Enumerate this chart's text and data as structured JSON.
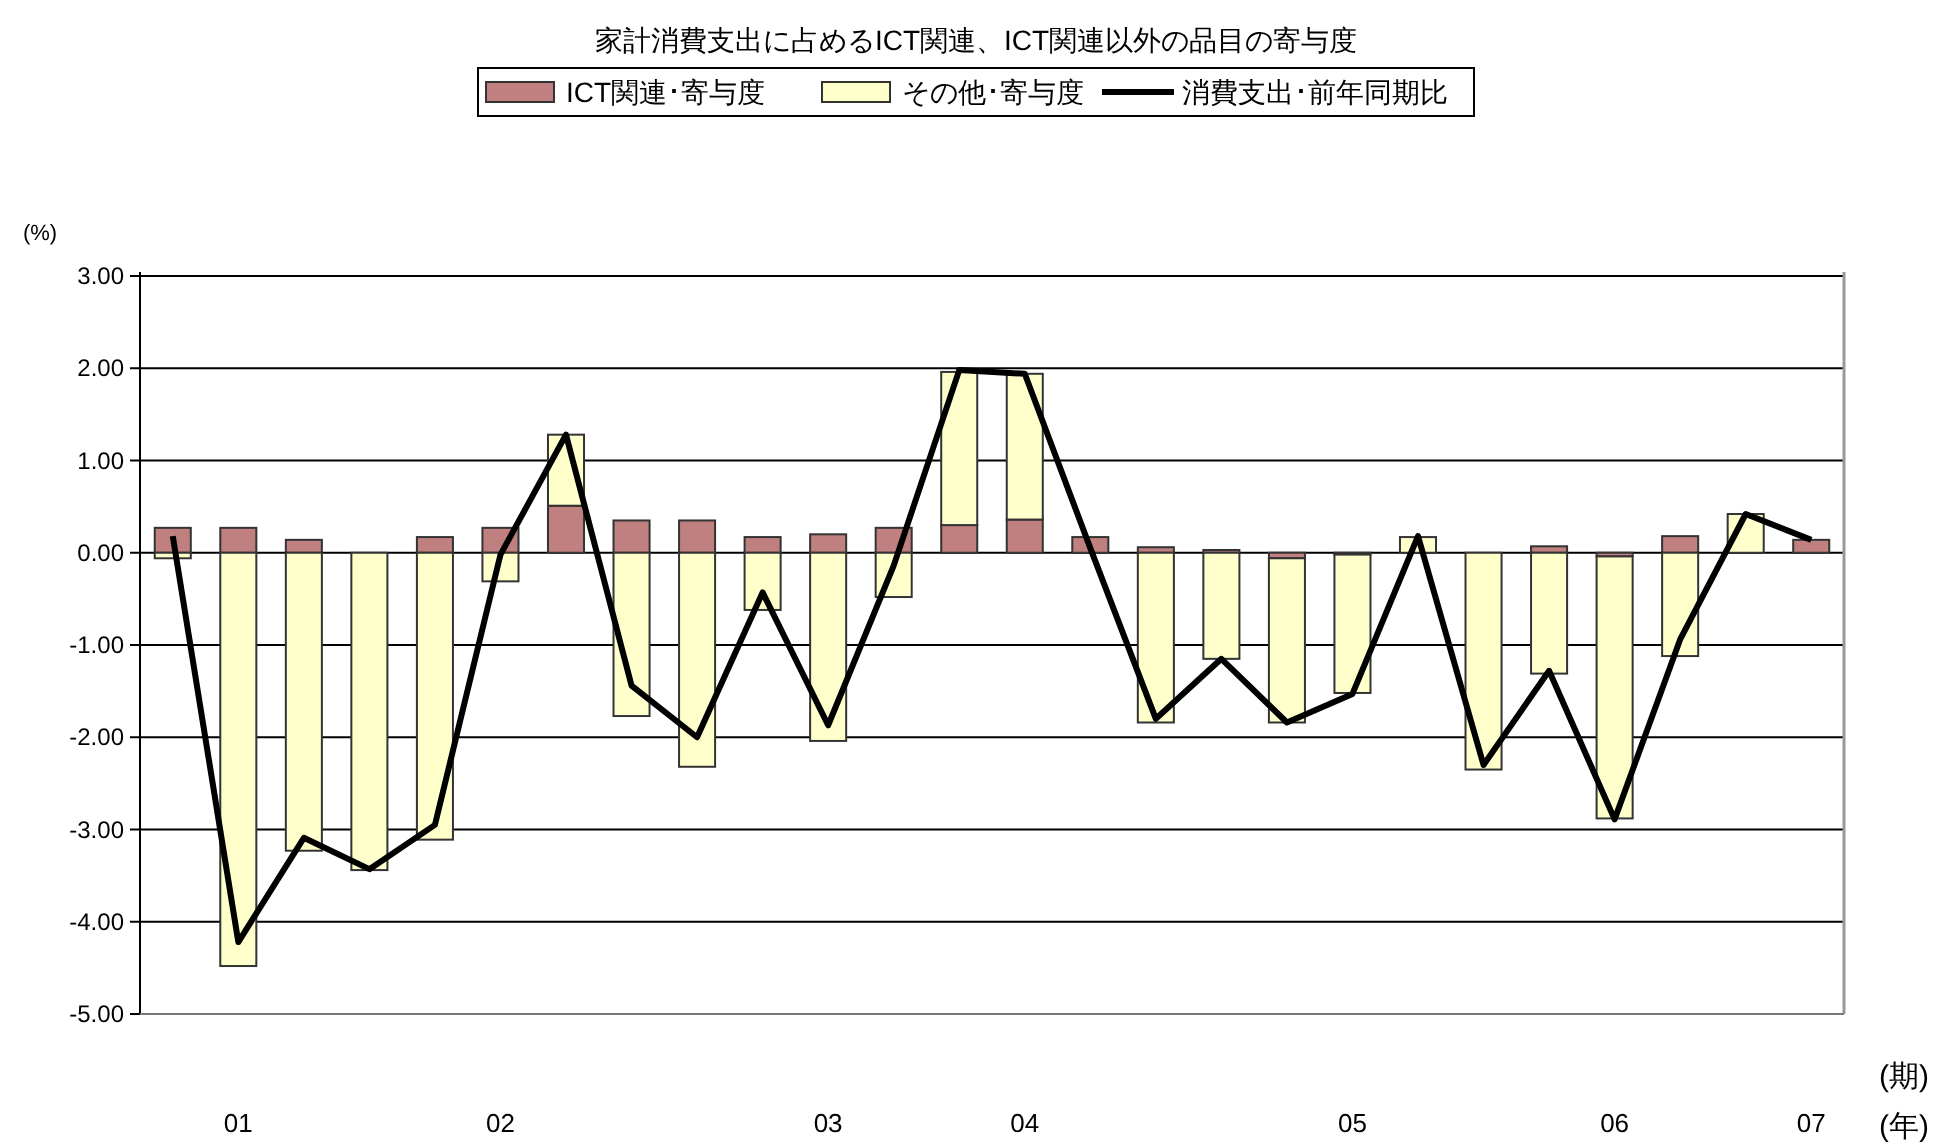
{
  "chart_data": {
    "type": "bar",
    "stacked": true,
    "title": "家計消費支出に占めるICT関連、ICT関連以外の品目の寄与度",
    "ylabel": "(%)",
    "annotations": [
      "(期)",
      "(年)"
    ],
    "categories": [
      null,
      "01",
      null,
      null,
      null,
      "02",
      null,
      null,
      null,
      null,
      "03",
      null,
      null,
      "04",
      null,
      null,
      null,
      null,
      "05",
      null,
      null,
      null,
      "06",
      null,
      null,
      "07"
    ],
    "series": [
      {
        "name": "ICT関連･寄与度",
        "color": "#c08080",
        "values": [
          0.27,
          0.27,
          0.14,
          0,
          0.17,
          0.27,
          0.51,
          0.35,
          0.35,
          0.17,
          0.2,
          0.27,
          0.3,
          0.36,
          0.17,
          0.06,
          0.03,
          -0.06,
          -0.02,
          0,
          0,
          0.07,
          -0.04,
          0.18,
          0,
          0.14
        ]
      },
      {
        "name": "その他･寄与度",
        "color": "#ffffcc",
        "values": [
          -0.06,
          -4.48,
          -3.23,
          -3.44,
          -3.11,
          -0.31,
          0.77,
          -1.77,
          -2.32,
          -0.62,
          -2.04,
          -0.48,
          1.66,
          1.58,
          0,
          -1.84,
          -1.15,
          -1.78,
          -1.5,
          0.17,
          -2.35,
          -1.31,
          -2.84,
          -1.12,
          0.42,
          0
        ]
      },
      {
        "name": "消費支出･前年同期比",
        "type": "line",
        "color": "#000000",
        "values": [
          0.18,
          -4.22,
          -3.09,
          -3.43,
          -2.95,
          -0.02,
          1.28,
          -1.44,
          -2.0,
          -0.43,
          -1.87,
          -0.14,
          1.98,
          1.94,
          0.05,
          -1.8,
          -1.15,
          -1.84,
          -1.53,
          0.18,
          -2.3,
          -1.28,
          -2.89,
          -0.94,
          0.42,
          0.14
        ]
      }
    ],
    "ylim": [
      -5,
      3
    ],
    "yticks": [
      {
        "value": -5,
        "label": "-5.00"
      },
      {
        "value": -4,
        "label": "-4.00"
      },
      {
        "value": -3,
        "label": "-3.00"
      },
      {
        "value": -2,
        "label": "-2.00"
      },
      {
        "value": -1,
        "label": "-1.00"
      },
      {
        "value": 0,
        "label": "0.00"
      },
      {
        "value": 1,
        "label": "1.00"
      },
      {
        "value": 2,
        "label": "2.00"
      },
      {
        "value": 3,
        "label": "3.00"
      }
    ],
    "grid": "y",
    "legend": "top"
  }
}
